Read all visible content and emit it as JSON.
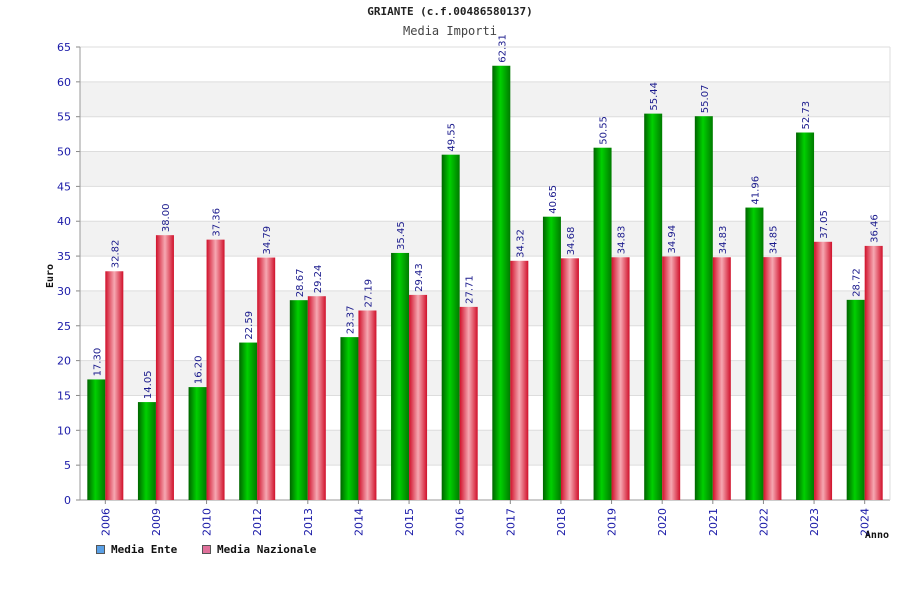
{
  "colors": {
    "ente": "#00b400",
    "ente_legend": "#5aa0e6",
    "nazionale": "#e23244",
    "nazionale_legend": "#e0709a",
    "axis_text": "#1a1aa8",
    "grid_band": "#f2f2f2"
  },
  "chart_data": {
    "type": "bar",
    "title": "GRIANTE (c.f.00486580137)",
    "subtitle": "Media Importi",
    "ylabel": "Euro",
    "xlabel": "Anno",
    "ylim": [
      0,
      65
    ],
    "yticks": [
      0,
      5,
      10,
      15,
      20,
      25,
      30,
      35,
      40,
      45,
      50,
      55,
      60,
      65
    ],
    "categories": [
      "2006",
      "2009",
      "2010",
      "2012",
      "2013",
      "2014",
      "2015",
      "2016",
      "2017",
      "2018",
      "2019",
      "2020",
      "2021",
      "2022",
      "2023",
      "2024"
    ],
    "series": [
      {
        "name": "Media Ente",
        "values": [
          17.3,
          14.05,
          16.2,
          22.59,
          28.67,
          23.37,
          35.45,
          49.55,
          62.31,
          40.65,
          50.55,
          55.44,
          55.07,
          41.96,
          52.73,
          28.72
        ],
        "labels": [
          "17.30",
          "14.05",
          "16.20",
          "22.59",
          "28.67",
          "23.37",
          "35.45",
          "49.55",
          "62.31",
          "40.65",
          "50.55",
          "55.44",
          "55.07",
          "41.96",
          "52.73",
          "28.72"
        ]
      },
      {
        "name": "Media Nazionale",
        "values": [
          32.82,
          38.0,
          37.36,
          34.79,
          29.24,
          27.19,
          29.43,
          27.71,
          34.32,
          34.68,
          34.83,
          34.94,
          34.83,
          34.85,
          37.05,
          36.46
        ],
        "labels": [
          "32.82",
          "38.00",
          "37.36",
          "34.79",
          "29.24",
          "27.19",
          "29.43",
          "27.71",
          "34.32",
          "34.68",
          "34.83",
          "34.94",
          "34.83",
          "34.85",
          "37.05",
          "36.46"
        ]
      }
    ],
    "grid": true,
    "legend_position": "bottom-left"
  }
}
